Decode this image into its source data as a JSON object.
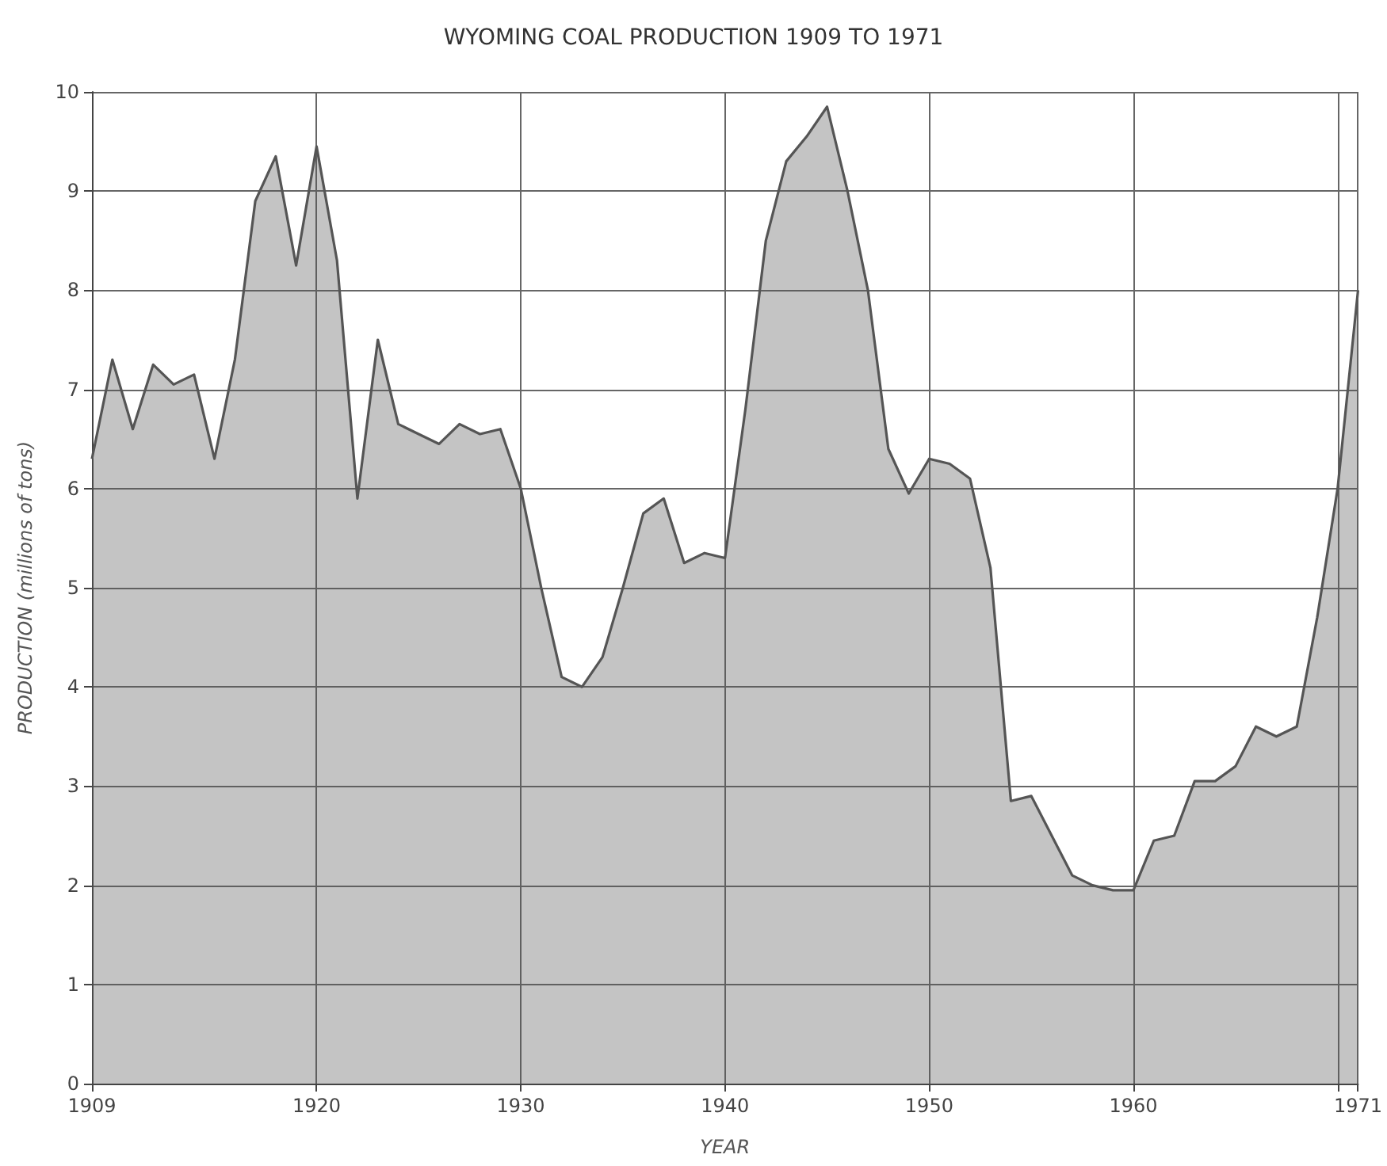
{
  "chart_data": {
    "type": "area",
    "title": "WYOMING COAL PRODUCTION 1909 TO 1971",
    "xlabel": "YEAR",
    "ylabel": "PRODUCTION (millions of tons)",
    "x": [
      1909,
      1910,
      1911,
      1912,
      1913,
      1914,
      1915,
      1916,
      1917,
      1918,
      1919,
      1920,
      1921,
      1922,
      1923,
      1924,
      1925,
      1926,
      1927,
      1928,
      1929,
      1930,
      1931,
      1932,
      1933,
      1934,
      1935,
      1936,
      1937,
      1938,
      1939,
      1940,
      1941,
      1942,
      1943,
      1944,
      1945,
      1946,
      1947,
      1948,
      1949,
      1950,
      1951,
      1952,
      1953,
      1954,
      1955,
      1956,
      1957,
      1958,
      1959,
      1960,
      1961,
      1962,
      1963,
      1964,
      1965,
      1966,
      1967,
      1968,
      1969,
      1970,
      1971
    ],
    "series": [
      {
        "color": "#555555",
        "values": [
          6.3,
          7.3,
          6.6,
          7.25,
          7.05,
          7.15,
          6.3,
          7.3,
          8.9,
          9.35,
          8.25,
          9.45,
          8.3,
          5.9,
          7.5,
          6.65,
          6.55,
          6.45,
          6.65,
          6.55,
          6.6,
          6.0,
          5.0,
          4.1,
          4.0,
          4.3,
          5.0,
          5.75,
          5.9,
          5.25,
          5.35,
          5.3,
          6.8,
          8.5,
          9.3,
          9.55,
          9.85,
          9.0,
          8.0,
          6.4,
          5.95,
          6.3,
          6.25,
          6.1,
          5.2,
          2.85,
          2.9,
          2.5,
          2.1,
          2.0,
          1.95,
          1.95,
          2.45,
          2.5,
          3.05,
          3.05,
          3.2,
          3.6,
          3.5,
          3.6,
          4.7,
          6.0,
          8.0
        ]
      }
    ],
    "xlim": [
      1909,
      1971
    ],
    "xticks": [
      1909,
      1920,
      1930,
      1940,
      1950,
      1960,
      {
        "value": 1970,
        "label": null
      },
      1971
    ],
    "ylim": [
      0,
      10
    ],
    "yticks": [
      0,
      1,
      2,
      3,
      4,
      5,
      6,
      7,
      8,
      9,
      10
    ],
    "grid": true
  }
}
